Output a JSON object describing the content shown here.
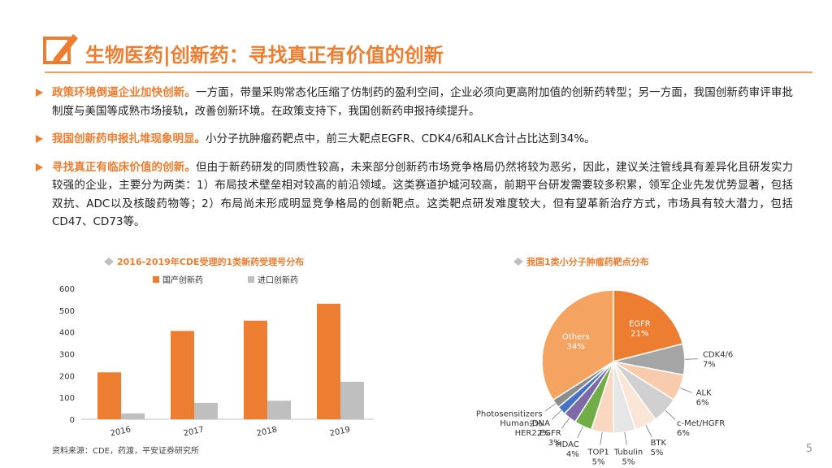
{
  "header": {
    "title": "生物医药|创新药：寻找真正有价值的创新"
  },
  "bullets": [
    {
      "lead": "政策环境倒逼企业加快创新。",
      "text": "一方面，带量采购常态化压缩了仿制药的盈利空间，企业必须向更高附加值的创新药转型；另一方面，我国创新药审评审批制度与美国等成熟市场接轨，改善创新环境。在政策支持下，我国创新药申报持续提升。"
    },
    {
      "lead": "我国创新药申报扎堆现象明显。",
      "text": "小分子抗肿瘤药靶点中，前三大靶点EGFR、CDK4/6和ALK合计占比达到34%。"
    },
    {
      "lead": "寻找真正有临床价值的创新。",
      "text": "但由于新药研发的同质性较高，未来部分创新药市场竞争格局仍然将较为恶劣，因此，建议关注管线具有差异化且研发实力较强的企业，主要分为两类：1）布局技术壁垒相对较高的前沿领域。这类赛道护城河较高，前期平台研发需要较多积累，领军企业先发优势显著，包括双抗、ADC以及核酸药物等；2）布局尚未形成明显竞争格局的创新靶点。这类靶点研发难度较大，但有望革新治疗方式，市场具有较大潜力，包括CD47、CD73等。"
    }
  ],
  "chart_data": [
    {
      "type": "bar",
      "title": "2016-2019年CDE受理的1类新药受理号分布",
      "categories": [
        "2016",
        "2017",
        "2018",
        "2019"
      ],
      "series": [
        {
          "name": "国产创新药",
          "color": "#ED7D31",
          "values": [
            215,
            405,
            452,
            530
          ]
        },
        {
          "name": "进口创新药",
          "color": "#BFBFBF",
          "values": [
            27,
            75,
            85,
            172
          ]
        }
      ],
      "ylim": [
        0,
        600
      ],
      "yticks": [
        0,
        100,
        200,
        300,
        400,
        500,
        600
      ],
      "legend": "top"
    },
    {
      "type": "pie",
      "title": "我国1类小分子肿瘤药靶点分布",
      "categories": [
        "EGFR",
        "CDK4/6",
        "ALK",
        "c-Met/HGFR",
        "BTK",
        "Tubulin",
        "TOP1",
        "HDAC",
        "HER2,EGFR",
        "Human-DNA",
        "Photosensitizers",
        "Others"
      ],
      "values": [
        21,
        7,
        6,
        6,
        5,
        5,
        5,
        4,
        3,
        2,
        2,
        34
      ],
      "value_labels": [
        "21%",
        "7%",
        "6%",
        "6%",
        "5%",
        "5%",
        "5%",
        "4%",
        "3%",
        "2%",
        "2%",
        "34%"
      ],
      "colors": [
        "#ED7D31",
        "#A5A5A5",
        "#F8CBAD",
        "#D0D0D0",
        "#FBE5D6",
        "#E7E6E6",
        "#FAD7C0",
        "#70AD47",
        "#7F6AA8",
        "#4472C4",
        "#8C8C8C",
        "#F4A460"
      ]
    }
  ],
  "source": "资料来源：CDE，药渡，平安证券研究所",
  "page_number": "5"
}
